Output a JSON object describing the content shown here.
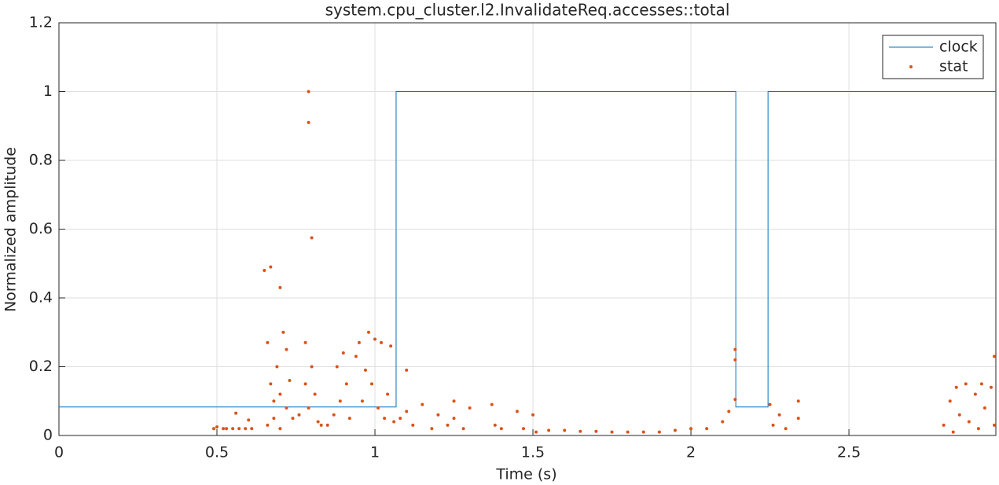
{
  "chart_data": {
    "type": "line",
    "title": "system.cpu_cluster.l2.InvalidateReq.accesses::total",
    "x_label": "Time (s)",
    "y_label": "Normalized amplitude",
    "xlim": [
      0,
      2.965
    ],
    "ylim": [
      0,
      1.2
    ],
    "xticks": [
      0,
      0.5,
      1,
      1.5,
      2,
      2.5
    ],
    "yticks": [
      0,
      0.2,
      0.4,
      0.6,
      0.8,
      1,
      1.2
    ],
    "grid": true,
    "legend_position": "top-right",
    "series": [
      {
        "name": "clock",
        "color": "#0072bd",
        "mode": "lines",
        "x": [
          0,
          1.067,
          1.067,
          2.142,
          2.142,
          2.244,
          2.244,
          2.965
        ],
        "values": [
          0.083,
          0.083,
          1,
          1,
          0.083,
          0.083,
          1,
          1
        ]
      },
      {
        "name": "stat",
        "color": "#d95319",
        "mode": "markers",
        "x": [
          0.49,
          0.5,
          0.52,
          0.53,
          0.55,
          0.57,
          0.59,
          0.61,
          0.56,
          0.6,
          0.65,
          0.67,
          0.66,
          0.67,
          0.68,
          0.69,
          0.7,
          0.7,
          0.71,
          0.72,
          0.72,
          0.73,
          0.74,
          0.66,
          0.68,
          0.7,
          0.76,
          0.78,
          0.78,
          0.79,
          0.79,
          0.79,
          0.8,
          0.8,
          0.81,
          0.82,
          0.83,
          0.85,
          0.87,
          0.88,
          0.89,
          0.9,
          0.91,
          0.92,
          0.94,
          0.95,
          0.96,
          0.97,
          0.98,
          0.99,
          1.0,
          1.01,
          1.02,
          1.03,
          1.04,
          1.05,
          1.06,
          1.08,
          1.1,
          1.1,
          1.12,
          1.15,
          1.18,
          1.2,
          1.23,
          1.25,
          1.25,
          1.28,
          1.3,
          1.37,
          1.38,
          1.4,
          1.45,
          1.47,
          1.5,
          1.51,
          1.55,
          1.6,
          1.65,
          1.7,
          1.75,
          1.8,
          1.85,
          1.9,
          1.95,
          2.0,
          2.05,
          2.1,
          2.12,
          2.14,
          2.14,
          2.14,
          2.25,
          2.26,
          2.28,
          2.3,
          2.34,
          2.34,
          2.8,
          2.82,
          2.84,
          2.85,
          2.87,
          2.88,
          2.9,
          2.92,
          2.93,
          2.95,
          2.96,
          2.96,
          2.83,
          2.91
        ],
        "values": [
          0.02,
          0.025,
          0.02,
          0.02,
          0.02,
          0.02,
          0.02,
          0.02,
          0.065,
          0.045,
          0.48,
          0.49,
          0.27,
          0.15,
          0.1,
          0.2,
          0.43,
          0.12,
          0.3,
          0.25,
          0.08,
          0.16,
          0.05,
          0.03,
          0.05,
          0.02,
          0.06,
          0.27,
          0.15,
          0.08,
          1.0,
          0.91,
          0.575,
          0.2,
          0.12,
          0.04,
          0.03,
          0.03,
          0.06,
          0.2,
          0.1,
          0.24,
          0.15,
          0.05,
          0.23,
          0.27,
          0.1,
          0.19,
          0.3,
          0.15,
          0.28,
          0.08,
          0.27,
          0.05,
          0.12,
          0.26,
          0.04,
          0.05,
          0.07,
          0.19,
          0.03,
          0.09,
          0.02,
          0.06,
          0.03,
          0.05,
          0.1,
          0.02,
          0.08,
          0.09,
          0.03,
          0.02,
          0.07,
          0.02,
          0.06,
          0.01,
          0.015,
          0.015,
          0.012,
          0.012,
          0.01,
          0.01,
          0.01,
          0.01,
          0.015,
          0.02,
          0.02,
          0.04,
          0.07,
          0.25,
          0.22,
          0.105,
          0.09,
          0.03,
          0.06,
          0.02,
          0.1,
          0.05,
          0.03,
          0.1,
          0.14,
          0.06,
          0.15,
          0.04,
          0.12,
          0.15,
          0.08,
          0.14,
          0.23,
          0.03,
          0.01,
          0.02
        ]
      }
    ]
  }
}
